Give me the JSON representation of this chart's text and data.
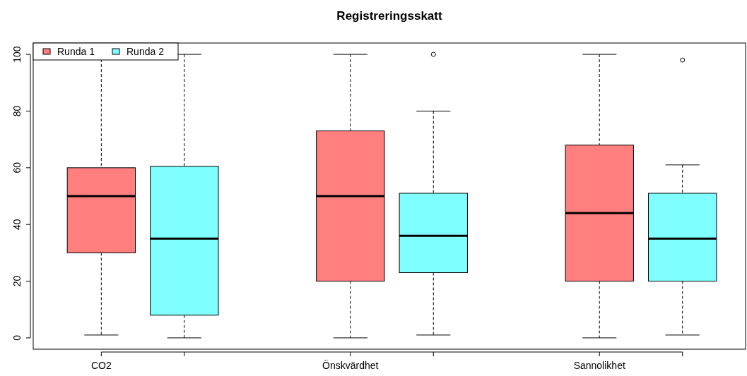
{
  "chart_data": {
    "type": "box",
    "title": "Registreringsskatt",
    "categories": [
      "CO2",
      "Önskvärdhet",
      "Sannolikhet"
    ],
    "series": [
      {
        "name": "Runda 1",
        "color": "#ff7f7f",
        "boxes": [
          {
            "low": 1,
            "q1": 30,
            "median": 50,
            "q3": 60,
            "high": 100
          },
          {
            "low": 0,
            "q1": 20,
            "median": 50,
            "q3": 73,
            "high": 100
          },
          {
            "low": 0,
            "q1": 20,
            "median": 44,
            "q3": 68,
            "high": 100
          }
        ]
      },
      {
        "name": "Runda 2",
        "color": "#7fffff",
        "boxes": [
          {
            "low": 0,
            "q1": 8,
            "median": 35,
            "q3": 60.5,
            "high": 100
          },
          {
            "low": 1,
            "q1": 23,
            "median": 36,
            "q3": 51,
            "high": 80,
            "outliers": [
              100
            ]
          },
          {
            "low": 1,
            "q1": 20,
            "median": 35,
            "q3": 51,
            "high": 61,
            "outliers": [
              98
            ]
          }
        ]
      }
    ],
    "ylim": [
      -4,
      104
    ],
    "yticks": [
      0,
      20,
      40,
      60,
      80,
      100
    ],
    "legend": "top left",
    "grid": false
  }
}
